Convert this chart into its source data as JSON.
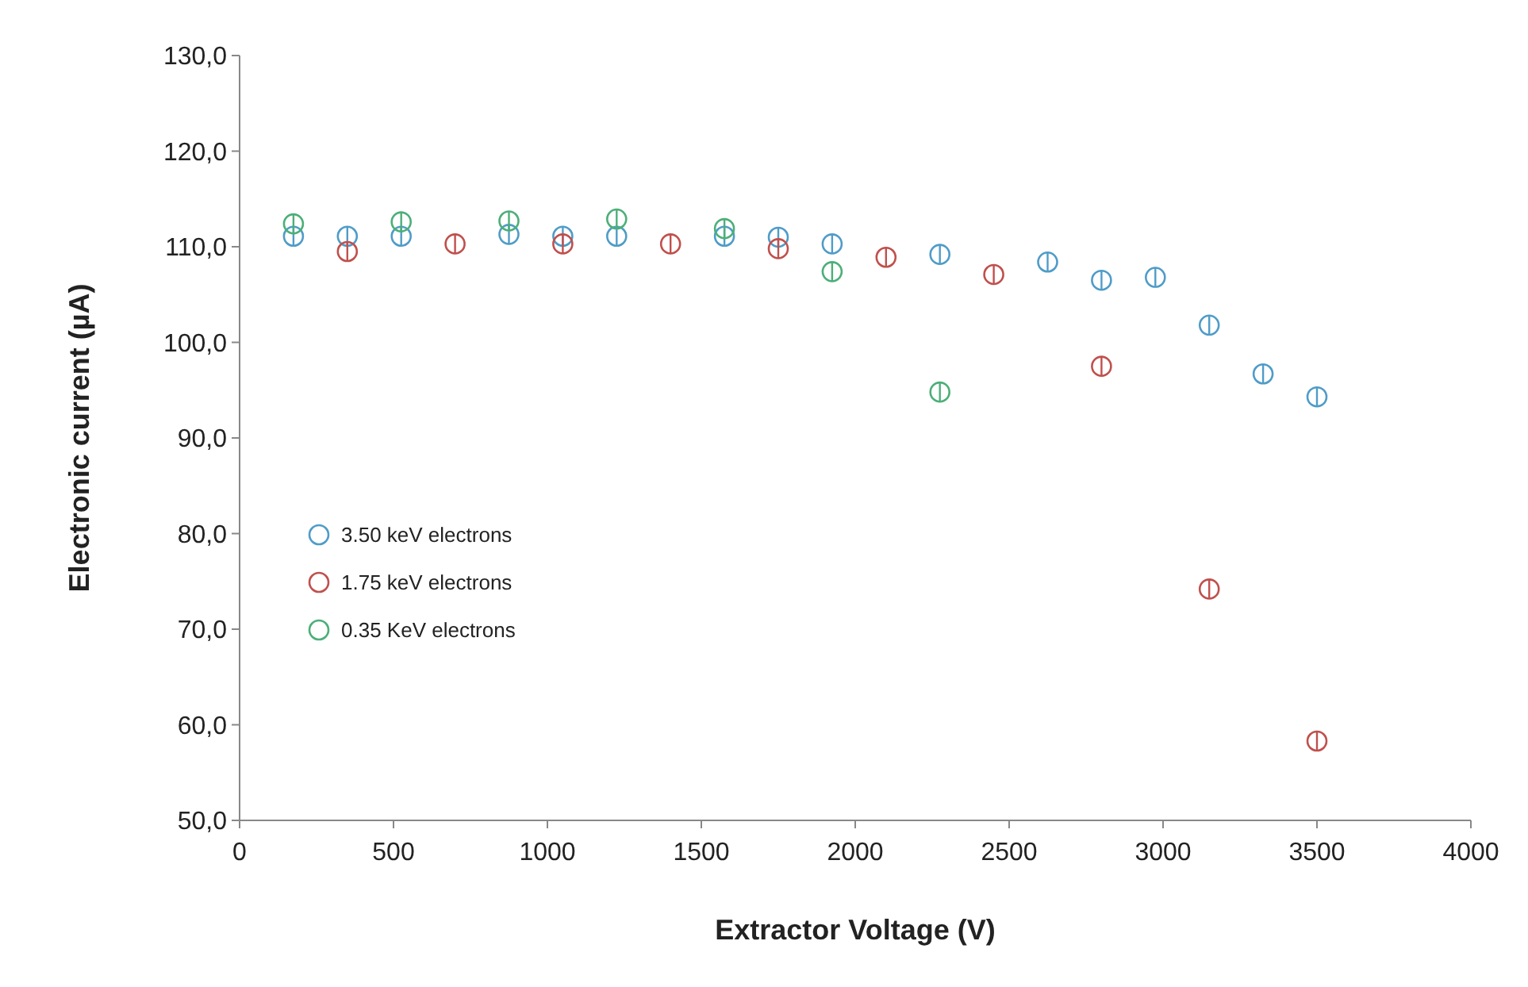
{
  "chart_data": {
    "type": "scatter",
    "xlabel": "Extractor Voltage (V)",
    "ylabel": "Electronic current (µA)",
    "xlim": [
      0,
      4000
    ],
    "xticks": [
      0,
      500,
      1000,
      1500,
      2000,
      2500,
      3000,
      3500,
      4000
    ],
    "ylim": [
      50,
      130
    ],
    "yticks": [
      {
        "value": 50,
        "label": "50,0"
      },
      {
        "value": 60,
        "label": "60,0"
      },
      {
        "value": 70,
        "label": "70,0"
      },
      {
        "value": 80,
        "label": "80,0"
      },
      {
        "value": 90,
        "label": "90,0"
      },
      {
        "value": 100,
        "label": "100,0"
      },
      {
        "value": 110,
        "label": "110,0"
      },
      {
        "value": 120,
        "label": "120,0"
      },
      {
        "value": 130,
        "label": "130,0"
      }
    ],
    "grid": false,
    "legend": "bottom left",
    "marker": "circle",
    "series": [
      {
        "name": "3.50 keV electrons",
        "color": "#4f9cc8",
        "x": [
          175,
          350,
          525,
          875,
          1050,
          1225,
          1575,
          1750,
          1925,
          2275,
          2625,
          2800,
          2975,
          3150,
          3325,
          3500
        ],
        "values": [
          111.1,
          111.1,
          111.1,
          111.3,
          111.1,
          111.1,
          111.1,
          111.0,
          110.3,
          109.2,
          108.4,
          106.5,
          106.8,
          101.8,
          96.7,
          94.3
        ],
        "errors": [
          1,
          1,
          1,
          1,
          1,
          1,
          1,
          1,
          1,
          1,
          1,
          1,
          1,
          1,
          1,
          1
        ]
      },
      {
        "name": "1.75 keV electrons",
        "color": "#c0504d",
        "x": [
          350,
          700,
          1050,
          1400,
          1750,
          2100,
          2450,
          2800,
          3150,
          3500
        ],
        "values": [
          109.5,
          110.3,
          110.3,
          110.3,
          109.8,
          108.9,
          107.1,
          97.5,
          74.2,
          58.3
        ],
        "errors": [
          1,
          1,
          1,
          1,
          1,
          1,
          1,
          1,
          1,
          1
        ]
      },
      {
        "name": "0.35 KeV electrons",
        "color": "#4caf78",
        "x": [
          175,
          525,
          875,
          1225,
          1575,
          1925,
          2275
        ],
        "values": [
          112.4,
          112.6,
          112.7,
          112.9,
          111.9,
          107.4,
          94.8
        ],
        "errors": [
          1,
          1,
          1,
          1,
          1,
          1,
          1
        ]
      }
    ]
  }
}
